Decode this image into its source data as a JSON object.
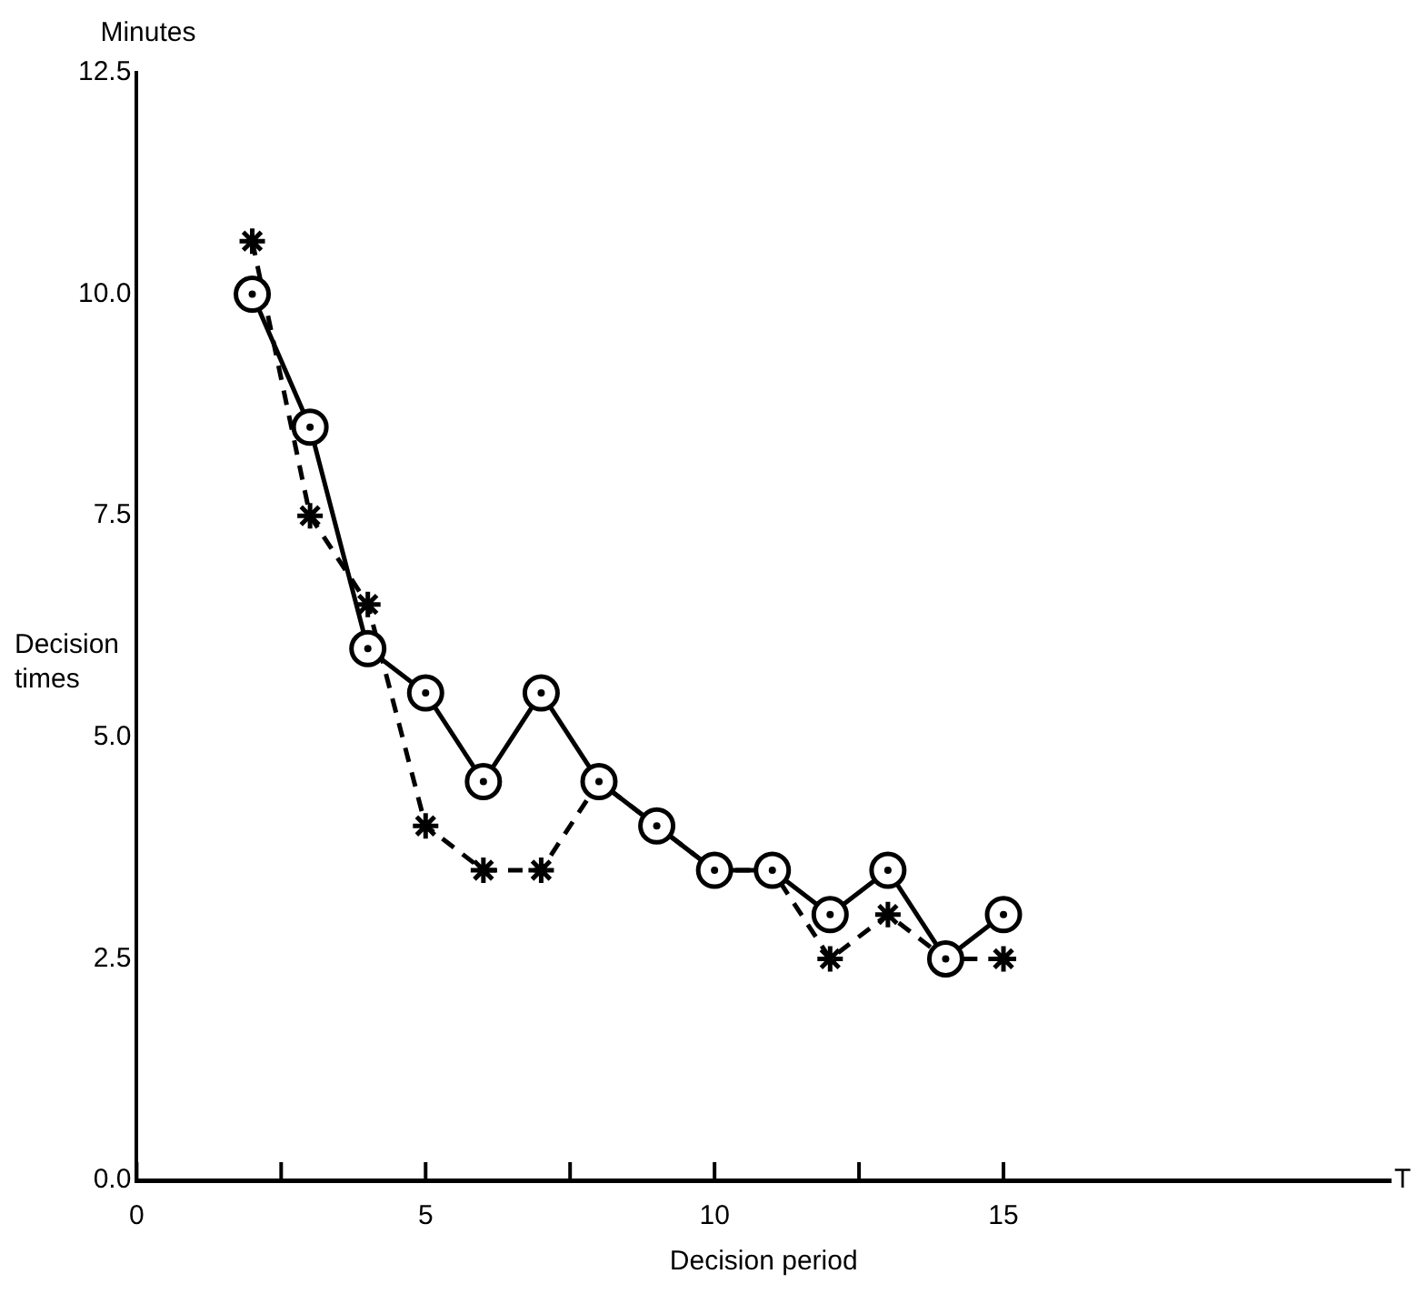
{
  "chart_data": {
    "type": "line",
    "xlabel": "Decision period",
    "ylabel": "Decision times",
    "annotations": [
      "Minutes",
      "T"
    ],
    "x": [
      2,
      3,
      4,
      5,
      6,
      7,
      8,
      9,
      10,
      11,
      12,
      13,
      14,
      15
    ],
    "series": [
      {
        "color": "#000000",
        "marker": "circle",
        "line_style": "solid",
        "values": [
          10.0,
          8.5,
          6.0,
          5.5,
          4.5,
          5.5,
          4.5,
          4.0,
          3.5,
          3.5,
          3.0,
          3.5,
          2.5,
          3.0
        ]
      },
      {
        "color": "#000000",
        "marker": "cross",
        "line_style": "dashed",
        "values": [
          10.6,
          7.5,
          6.5,
          4.0,
          3.5,
          3.5,
          4.5,
          4.0,
          3.5,
          3.5,
          2.5,
          3.0,
          2.5,
          2.5
        ]
      }
    ],
    "xlim": [
      0,
      21.7
    ],
    "xticks": [
      0,
      {
        "value": 2.5,
        "label": null
      },
      5,
      {
        "value": 7.5,
        "label": null
      },
      10,
      {
        "value": 12.5,
        "label": null
      },
      15
    ],
    "ylim": [
      0,
      12.5
    ],
    "yticks": [
      {
        "value": 0,
        "label": "0.0"
      },
      2.5,
      {
        "value": 5,
        "label": "5.0"
      },
      7.5,
      {
        "value": 10,
        "label": "10.0"
      },
      12.5
    ],
    "grid": false,
    "legend": false
  }
}
